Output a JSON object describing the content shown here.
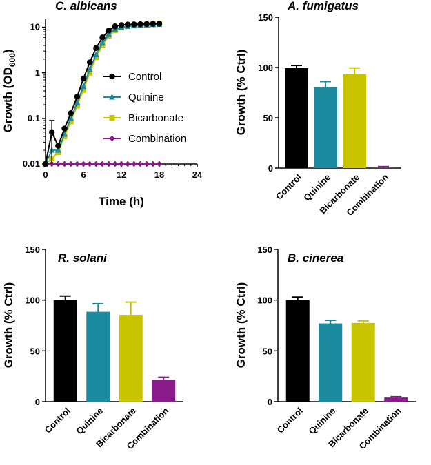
{
  "chart_data": [
    {
      "type": "line",
      "title": "C. albicans",
      "xlabel": "Time (h)",
      "ylabel": "Growth (OD600)",
      "ylabel_main": "Growth (OD",
      "ylabel_sub": "600",
      "ylabel_close": ")",
      "yscale": "log",
      "xlim": [
        0,
        24
      ],
      "ylim": [
        0.01,
        15
      ],
      "xticks": [
        0,
        6,
        12,
        18,
        24
      ],
      "xtick_labels": [
        "0",
        "6",
        "12",
        "18",
        "24"
      ],
      "yticks": [
        0.01,
        0.1,
        1,
        10
      ],
      "ytick_labels": [
        "0.01",
        "0.1",
        "1",
        "10"
      ],
      "grid": false,
      "legend_position": "center-right",
      "series": [
        {
          "name": "Control",
          "color": "#000000",
          "marker": "circle",
          "x": [
            0,
            1,
            2,
            3,
            4,
            5,
            6,
            7,
            8,
            9,
            10,
            11,
            12,
            13,
            14,
            15,
            16,
            17,
            18
          ],
          "y": [
            0.01,
            0.05,
            0.025,
            0.06,
            0.13,
            0.3,
            0.75,
            1.7,
            3.5,
            6.0,
            8.5,
            10.5,
            11.2,
            11.5,
            11.6,
            11.7,
            11.8,
            11.9,
            12.0
          ],
          "err_index": 1,
          "err_value": 0.04
        },
        {
          "name": "Quinine",
          "color": "#1b8a9e",
          "marker": "triangle",
          "x": [
            0,
            1,
            2,
            3,
            4,
            5,
            6,
            7,
            8,
            9,
            10,
            11,
            12,
            13,
            14,
            15,
            16,
            17,
            18
          ],
          "y": [
            0.01,
            0.02,
            0.02,
            0.045,
            0.1,
            0.22,
            0.5,
            1.2,
            2.5,
            4.5,
            7.0,
            9.0,
            10.0,
            10.5,
            10.8,
            11.0,
            11.2,
            11.4,
            11.5
          ]
        },
        {
          "name": "Bicarbonate",
          "color": "#c8c400",
          "marker": "square",
          "x": [
            0,
            1,
            2,
            3,
            4,
            5,
            6,
            7,
            8,
            9,
            10,
            11,
            12,
            13,
            14,
            15,
            16,
            17,
            18
          ],
          "y": [
            0.01,
            0.013,
            0.018,
            0.04,
            0.085,
            0.19,
            0.42,
            1.0,
            2.2,
            4.0,
            6.5,
            8.5,
            9.8,
            10.5,
            11.0,
            11.3,
            11.6,
            11.8,
            12.0
          ]
        },
        {
          "name": "Combination",
          "color": "#8b1a8b",
          "marker": "diamond",
          "x": [
            0,
            1,
            2,
            3,
            4,
            5,
            6,
            7,
            8,
            9,
            10,
            11,
            12,
            13,
            14,
            15,
            16,
            17,
            18
          ],
          "y": [
            0.01,
            0.01,
            0.01,
            0.01,
            0.01,
            0.01,
            0.01,
            0.01,
            0.01,
            0.01,
            0.01,
            0.01,
            0.01,
            0.01,
            0.01,
            0.01,
            0.01,
            0.01,
            0.01
          ]
        }
      ]
    },
    {
      "type": "bar",
      "title": "A. fumigatus",
      "ylabel": "Growth (% Ctrl)",
      "ylim": [
        0,
        150
      ],
      "yticks": [
        0,
        50,
        100,
        150
      ],
      "ytick_labels": [
        "0",
        "50",
        "100",
        "150"
      ],
      "categories": [
        "Control",
        "Quinine",
        "Bicarbonate",
        "Combination"
      ],
      "values": [
        99.5,
        80.5,
        93.5,
        0.5
      ],
      "errors": [
        2.5,
        5.5,
        6.0,
        1.0
      ],
      "colors": [
        "#000000",
        "#1b8a9e",
        "#c8c400",
        "#8b1a8b"
      ],
      "grid": false
    },
    {
      "type": "bar",
      "title": "R. solani",
      "ylabel": "Growth (% Ctrl)",
      "ylim": [
        0,
        150
      ],
      "yticks": [
        0,
        50,
        100,
        150
      ],
      "ytick_labels": [
        "0",
        "50",
        "100",
        "150"
      ],
      "categories": [
        "Control",
        "Quinine",
        "Bicarbonate",
        "Combination"
      ],
      "values": [
        100,
        88.5,
        85.5,
        21.5
      ],
      "errors": [
        4.0,
        8.0,
        12.5,
        2.5
      ],
      "colors": [
        "#000000",
        "#1b8a9e",
        "#c8c400",
        "#8b1a8b"
      ],
      "grid": false
    },
    {
      "type": "bar",
      "title": "B. cinerea",
      "ylabel": "Growth (% Ctrl)",
      "ylim": [
        0,
        150
      ],
      "yticks": [
        0,
        50,
        100,
        150
      ],
      "ytick_labels": [
        "0",
        "50",
        "100",
        "150"
      ],
      "categories": [
        "Control",
        "Quinine",
        "Bicarbonate",
        "Combination"
      ],
      "values": [
        100,
        77,
        77.5,
        4
      ],
      "errors": [
        3.0,
        3.0,
        2.0,
        0.8
      ],
      "colors": [
        "#000000",
        "#1b8a9e",
        "#c8c400",
        "#8b1a8b"
      ],
      "grid": false
    }
  ]
}
